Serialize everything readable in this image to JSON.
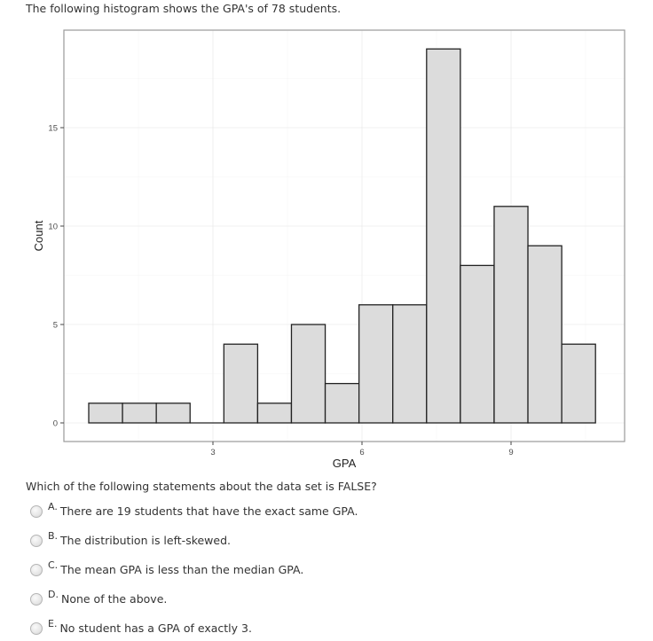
{
  "intro": "The following histogram shows the GPA's of 78 students.",
  "question": "Which of the following statements about the data set is FALSE?",
  "options": [
    {
      "letter": "A.",
      "text": "There are 19 students that have the exact same GPA."
    },
    {
      "letter": "B.",
      "text": "The distribution is left-skewed."
    },
    {
      "letter": "C.",
      "text": "The mean GPA is less than the median GPA."
    },
    {
      "letter": "D.",
      "text": "None of the above."
    },
    {
      "letter": "E.",
      "text": "No student has a GPA of exactly 3."
    }
  ],
  "colors": {
    "bar_fill": "#dcdcdc",
    "bar_stroke": "#222222",
    "panel_border": "#9a9a9a",
    "grid_major": "#ebebeb",
    "grid_minor": "#f5f5f5"
  },
  "chart_data": {
    "type": "bar",
    "subtype": "histogram",
    "title": "",
    "xlabel": "GPA",
    "ylabel": "Count",
    "x_ticks": [
      3,
      6,
      9
    ],
    "y_ticks": [
      0,
      5,
      10,
      15
    ],
    "xlim": [
      0,
      11.3
    ],
    "ylim": [
      -1,
      19.9
    ],
    "bin_start": 0.5,
    "bin_width": 0.68,
    "categories": [
      "0.50-1.18",
      "1.18-1.86",
      "1.86-2.54",
      "2.54-3.22",
      "3.22-3.90",
      "3.90-4.58",
      "4.58-5.26",
      "5.26-5.94",
      "5.94-6.62",
      "6.62-7.30",
      "7.30-7.98",
      "7.98-8.66",
      "8.66-9.34",
      "9.34-10.02",
      "10.02-10.70"
    ],
    "values": [
      1,
      1,
      1,
      0,
      4,
      1,
      5,
      2,
      6,
      6,
      19,
      8,
      11,
      9,
      4
    ],
    "total": 78,
    "grid": true,
    "legend": null
  }
}
